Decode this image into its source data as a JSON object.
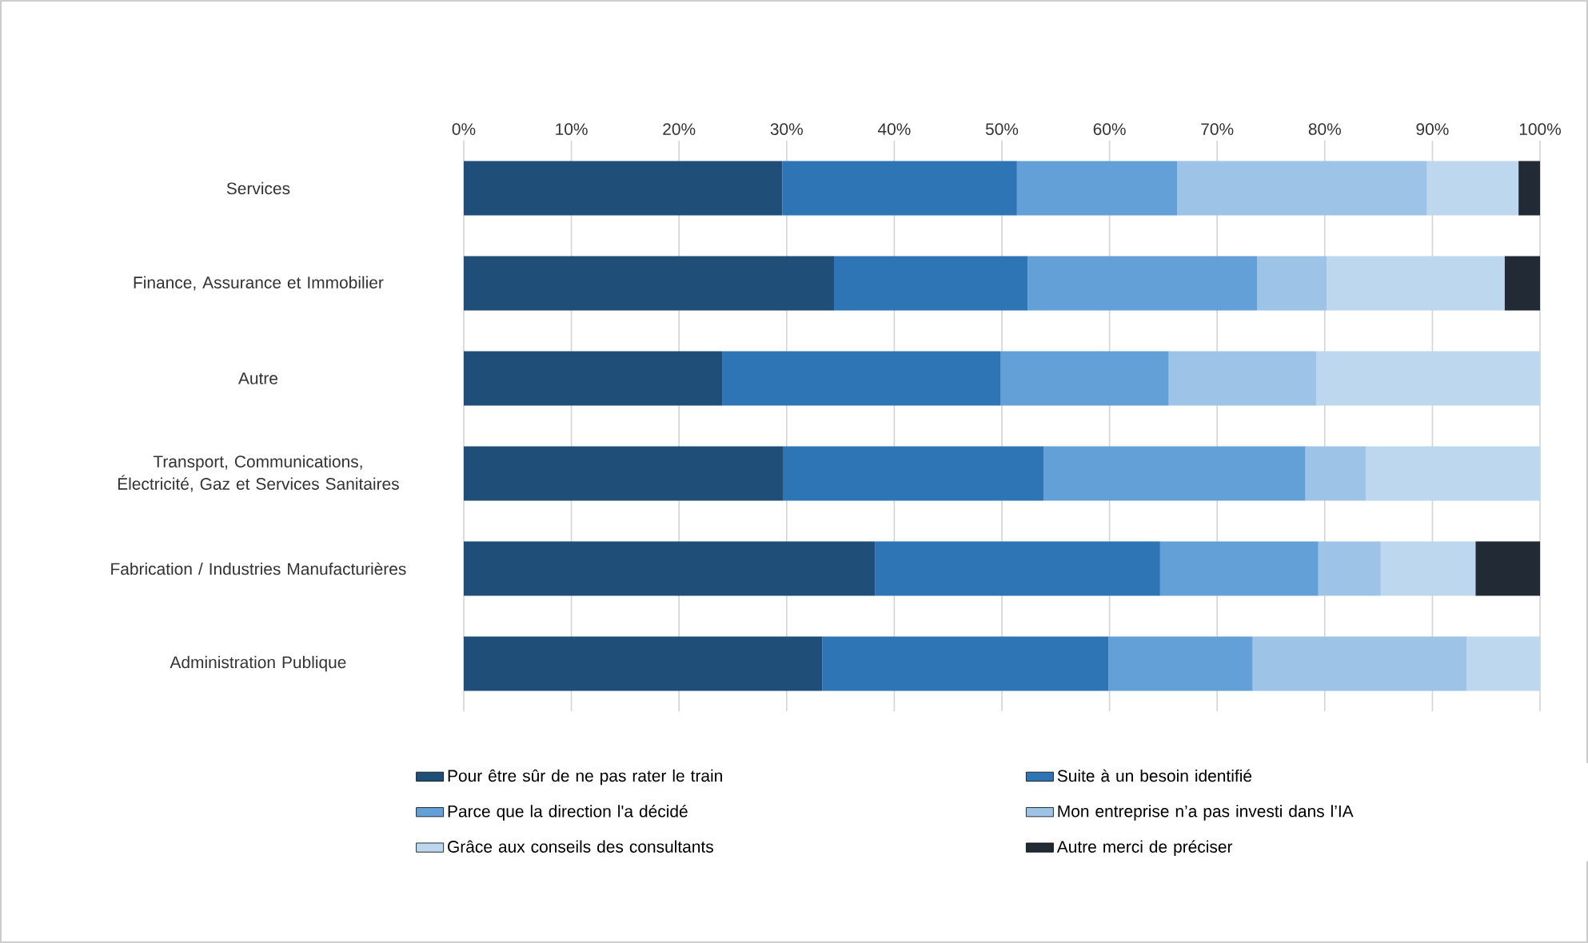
{
  "chart_data": {
    "type": "bar",
    "orientation": "horizontal",
    "stacked": true,
    "categories": [
      "Services",
      "Finance, Assurance et Immobilier",
      "Autre",
      "Transport, Communications, Électricité, Gaz et Services Sanitaires",
      "Fabrication / Industries Manufacturières",
      "Administration Publique"
    ],
    "series": [
      {
        "name": "Pour être sûr de ne pas rater le train",
        "color": "#1f4e79",
        "values": [
          29.6,
          34.4,
          24.0,
          29.7,
          38.2,
          33.3
        ]
      },
      {
        "name": "Suite à un besoin identifié",
        "color": "#2e75b6",
        "values": [
          21.8,
          18.0,
          25.9,
          24.2,
          26.5,
          26.6
        ]
      },
      {
        "name": "Parce que la direction l'a décidé",
        "color": "#63a0d7",
        "values": [
          14.9,
          21.3,
          15.6,
          24.3,
          14.7,
          13.4
        ]
      },
      {
        "name": "Mon entreprise n’a pas investi dans l’IA",
        "color": "#9dc3e6",
        "values": [
          23.2,
          6.5,
          13.7,
          5.6,
          5.8,
          19.9
        ]
      },
      {
        "name": "Grâce aux conseils des consultants",
        "color": "#bdd7ee",
        "values": [
          8.5,
          16.5,
          20.8,
          16.2,
          8.8,
          6.8
        ]
      },
      {
        "name": "Autre merci de préciser",
        "color": "#222a35",
        "values": [
          2.0,
          3.3,
          0,
          0,
          6.0,
          0
        ]
      }
    ],
    "xlim": [
      0,
      100
    ],
    "xticks": [
      {
        "value": 0,
        "label": "0%"
      },
      {
        "value": 10,
        "label": "10%"
      },
      {
        "value": 20,
        "label": "20%"
      },
      {
        "value": 30,
        "label": "30%"
      },
      {
        "value": 40,
        "label": "40%"
      },
      {
        "value": 50,
        "label": "50%"
      },
      {
        "value": 60,
        "label": "60%"
      },
      {
        "value": 70,
        "label": "70%"
      },
      {
        "value": 80,
        "label": "80%"
      },
      {
        "value": 90,
        "label": "90%"
      },
      {
        "value": 100,
        "label": "100%"
      }
    ],
    "grid": "x",
    "legend": "bottom"
  }
}
